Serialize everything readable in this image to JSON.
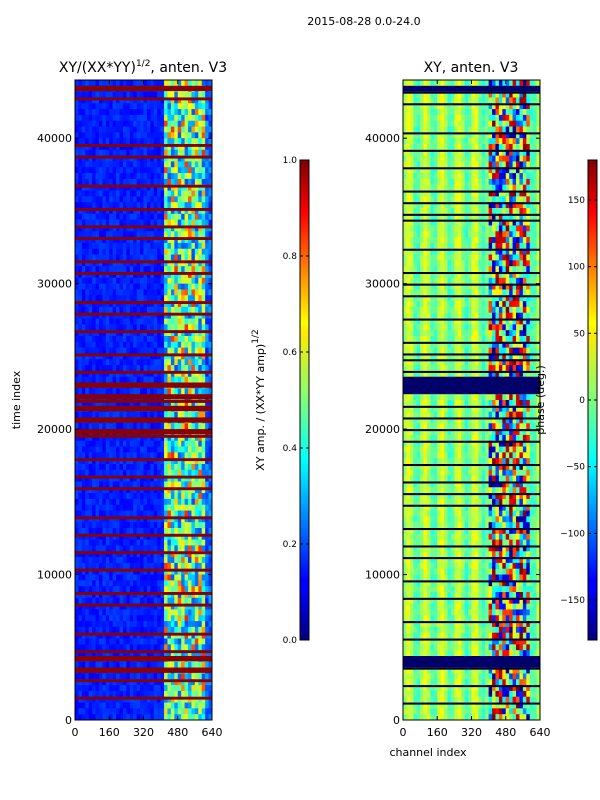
{
  "figure_title": "2015-08-28 0.0-24.0",
  "chart_data": [
    {
      "type": "heatmap",
      "title_main": "XY/(XX*YY)",
      "title_sup": "1/2",
      "title_rest": ", anten. V3",
      "xlabel": "",
      "ylabel": "time index",
      "xlim": [
        0,
        640
      ],
      "ylim": [
        0,
        44000
      ],
      "xticks": [
        "0",
        "160",
        "320",
        "480",
        "640"
      ],
      "yticks": [
        "0",
        "10000",
        "20000",
        "30000",
        "40000"
      ],
      "colormap": "jet",
      "colorbar": {
        "label_main": "XY amp. / (XX*YY amp)",
        "label_sup": "1/2",
        "range": [
          0.0,
          1.0
        ],
        "ticks": [
          "0.0",
          "0.2",
          "0.4",
          "0.6",
          "0.8",
          "1.0"
        ]
      }
    },
    {
      "type": "heatmap",
      "title": "XY, anten. V3",
      "xlabel": "channel index",
      "ylabel": "",
      "xlim": [
        0,
        640
      ],
      "ylim": [
        0,
        44000
      ],
      "xticks": [
        "0",
        "160",
        "320",
        "480",
        "640"
      ],
      "yticks": [
        "0",
        "10000",
        "20000",
        "30000",
        "40000"
      ],
      "colormap": "jet",
      "colorbar": {
        "label": "phase (deg.)",
        "range": [
          -180,
          180
        ],
        "ticks": [
          "−150",
          "−100",
          "−50",
          "0",
          "50",
          "100",
          "150"
        ]
      }
    }
  ]
}
